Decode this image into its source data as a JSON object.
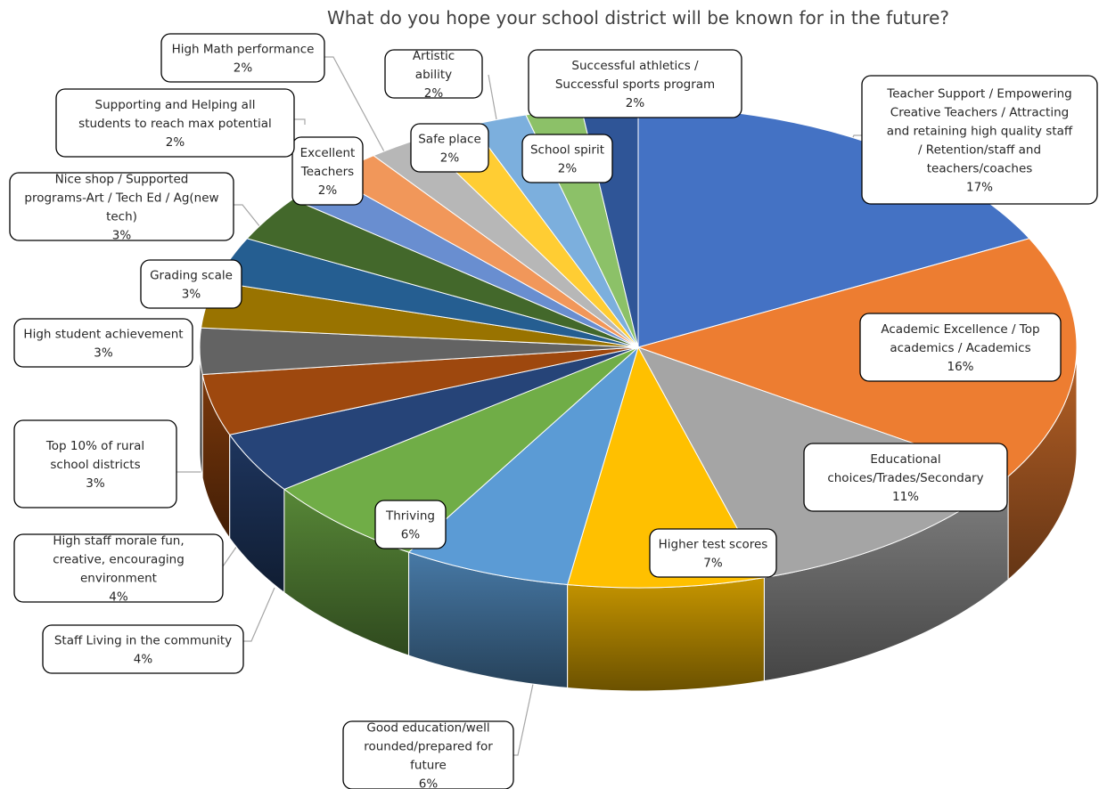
{
  "chart_data": {
    "type": "pie",
    "style": "3d",
    "title": "What do you hope your school district will be known for in the future?",
    "slices": [
      {
        "label": "Teacher Support / Empowering Creative Teachers / Attracting and retaining high quality staff / Retention/staff and teachers/coaches",
        "pct_label": "17%",
        "value": 17,
        "color": "#4472c4"
      },
      {
        "label": "Academic Excellence / Top academics / Academics",
        "pct_label": "16%",
        "value": 16,
        "color": "#ed7d31"
      },
      {
        "label": "Educational choices/Trades/Secondary",
        "pct_label": "11%",
        "value": 11,
        "color": "#a5a5a5"
      },
      {
        "label": "Higher test scores",
        "pct_label": "7%",
        "value": 7,
        "color": "#ffc000"
      },
      {
        "label": "Good education/well rounded/prepared for future",
        "pct_label": "6%",
        "value": 6,
        "color": "#5b9bd5"
      },
      {
        "label": "Thriving",
        "pct_label": "6%",
        "value": 6,
        "color": "#70ad47"
      },
      {
        "label": "Staff Living in the community",
        "pct_label": "4%",
        "value": 4,
        "color": "#264478"
      },
      {
        "label": "High staff morale fun, creative, encouraging environment",
        "pct_label": "4%",
        "value": 4,
        "color": "#9e480e"
      },
      {
        "label": "Top 10% of rural school districts",
        "pct_label": "3%",
        "value": 3,
        "color": "#636363"
      },
      {
        "label": "High student achievement",
        "pct_label": "3%",
        "value": 3,
        "color": "#997300"
      },
      {
        "label": "Grading scale",
        "pct_label": "3%",
        "value": 3,
        "color": "#255e91"
      },
      {
        "label": "Nice shop / Supported programs-Art / Tech Ed / Ag(new tech)",
        "pct_label": "3%",
        "value": 3,
        "color": "#43682b"
      },
      {
        "label": "Excellent Teachers",
        "pct_label": "2%",
        "value": 2,
        "color": "#698ed0"
      },
      {
        "label": "Supporting and Helping all students to reach max potential",
        "pct_label": "2%",
        "value": 2,
        "color": "#f1975a"
      },
      {
        "label": "High Math performance",
        "pct_label": "2%",
        "value": 2,
        "color": "#b7b7b7"
      },
      {
        "label": "Safe place",
        "pct_label": "2%",
        "value": 2,
        "color": "#ffcd33"
      },
      {
        "label": "Artistic ability",
        "pct_label": "2%",
        "value": 2,
        "color": "#7cafdd"
      },
      {
        "label": "Successful athletics / Successful sports program",
        "pct_label": "2%",
        "value": 2,
        "color": "#8cc168"
      },
      {
        "label": "School spirit",
        "pct_label": "2%",
        "value": 2,
        "color": "#2f5597"
      }
    ],
    "legend": "none"
  }
}
